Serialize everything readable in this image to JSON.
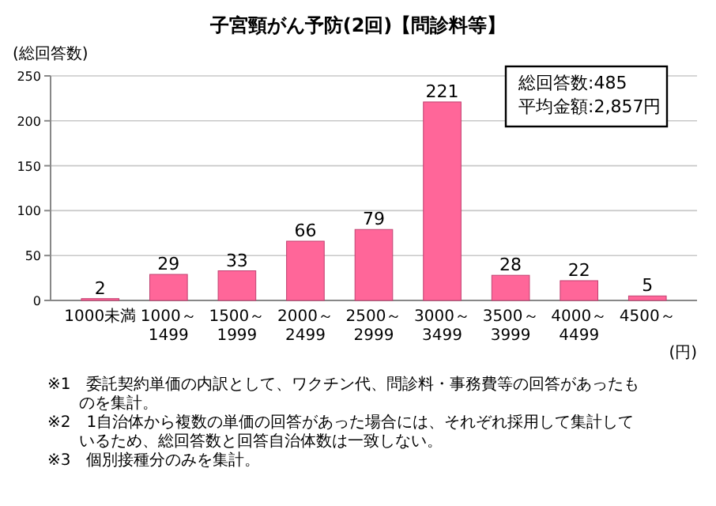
{
  "chart_data": {
    "type": "bar",
    "title": "子宮頸がん予防(2回)【問診料等】",
    "ylabel": "(総回答数)",
    "xlabel": "(円)",
    "categories": [
      "1000未満",
      "1000～1499",
      "1500～1999",
      "2000～2499",
      "2500～2999",
      "3000～3499",
      "3500～3999",
      "4000～4499",
      "4500～"
    ],
    "values": [
      2,
      29,
      33,
      66,
      79,
      221,
      28,
      22,
      5
    ],
    "color": "#ff6699",
    "ylim": [
      0,
      250
    ],
    "yticks": [
      0,
      50,
      100,
      150,
      200,
      250
    ],
    "grid": "y",
    "data_labels": true,
    "annotations": [
      "総回答数:485",
      "平均金額:2,857円",
      "※1　委託契約単価の内訳として、ワクチン代、問診料・事務費等の回答があったものを集計。",
      "※2　1自治体から複数の単価の回答があった場合には、それぞれ採用して集計しているため、総回答数と回答自治体数は一致しない。",
      "※3　個別接種分のみを集計。"
    ]
  }
}
